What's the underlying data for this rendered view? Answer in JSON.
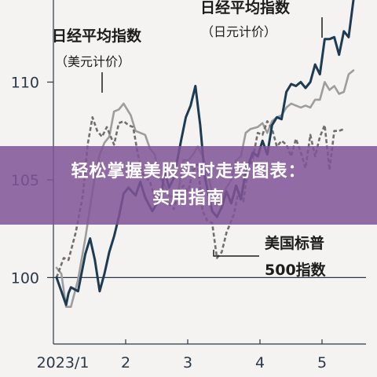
{
  "chart_data": {
    "type": "line",
    "title": "",
    "xlabel": "",
    "ylabel": "",
    "x_ticks": [
      "2023/1",
      "2",
      "3",
      "4",
      "5"
    ],
    "y_ticks": [
      100,
      105,
      110
    ],
    "ylim": [
      96.6,
      114.2
    ],
    "reference_line": 100,
    "grid": false,
    "series": [
      {
        "name": "日经平均指数（日元计价）",
        "style": "solid",
        "color": "#1d3b53",
        "x": [
          0,
          2,
          4,
          5,
          6,
          9,
          12,
          14,
          16,
          18,
          20,
          22,
          24,
          26,
          28,
          30,
          33,
          35,
          37,
          40,
          42,
          44,
          45,
          47,
          49,
          52,
          54,
          56,
          58,
          60,
          62,
          65,
          67,
          69,
          71,
          73,
          75,
          77,
          79,
          82,
          84,
          86,
          88,
          90,
          92,
          94,
          96,
          98,
          100,
          102,
          104,
          106,
          108,
          110,
          112,
          114,
          116,
          118,
          120,
          122,
          124
        ],
        "values": [
          100.0,
          99.3,
          98.6,
          99.2,
          99.5,
          99.3,
          101.2,
          102.0,
          100.9,
          99.3,
          100.2,
          101.3,
          102.1,
          103.1,
          104.3,
          104.6,
          104.2,
          104.9,
          104.1,
          103.4,
          103.8,
          104.3,
          105.5,
          104.6,
          105.1,
          107.0,
          108.2,
          108.8,
          109.8,
          107.8,
          105.1,
          103.4,
          103.1,
          103.6,
          104.4,
          103.8,
          104.7,
          104.0,
          105.4,
          106.4,
          106.2,
          107.0,
          106.3,
          107.8,
          108.2,
          108.1,
          109.5,
          109.9,
          109.8,
          110.0,
          109.7,
          110.0,
          110.9,
          110.4,
          112.2,
          112.2,
          112.3,
          111.4,
          112.6,
          112.3,
          114.2
        ]
      },
      {
        "name": "日经平均指数（美元计价）",
        "style": "solid",
        "color": "#9d9d9d",
        "x": [
          0,
          2,
          4,
          6,
          9,
          12,
          14,
          16,
          18,
          20,
          22,
          24,
          26,
          28,
          31,
          33,
          35,
          37,
          39,
          41,
          43,
          45,
          47,
          49,
          51,
          53,
          55,
          57,
          59,
          61,
          63,
          65,
          67,
          69,
          71,
          73,
          75,
          77,
          79,
          81,
          84,
          86,
          88,
          90,
          92,
          94,
          96,
          98,
          100,
          102,
          104,
          106,
          108,
          110,
          112,
          114,
          116,
          118,
          120,
          122,
          124
        ],
        "values": [
          100.5,
          100.2,
          98.5,
          98.5,
          99.9,
          102.0,
          103.6,
          105.2,
          106.3,
          106.9,
          107.2,
          108.5,
          108.6,
          108.9,
          108.3,
          107.5,
          107.4,
          107.3,
          106.6,
          106.3,
          105.1,
          104.8,
          104.2,
          104.1,
          104.5,
          106.0,
          106.0,
          106.3,
          106.7,
          106.2,
          105.4,
          104.4,
          103.7,
          104.0,
          104.6,
          105.0,
          106.0,
          106.2,
          107.4,
          107.6,
          107.7,
          107.9,
          107.4,
          108.0,
          108.2,
          108.3,
          108.7,
          108.9,
          108.8,
          108.7,
          108.8,
          108.7,
          109.1,
          109.1,
          110.0,
          109.6,
          109.8,
          109.4,
          109.5,
          110.4,
          110.6
        ]
      },
      {
        "name": "美国标普500指数",
        "style": "dashed",
        "color": "#6f6f6f",
        "x": [
          0,
          3,
          5,
          8,
          11,
          13,
          15,
          17,
          19,
          21,
          24,
          26,
          28,
          30,
          32,
          34,
          36,
          39,
          41,
          43,
          45,
          47,
          49,
          51,
          53,
          55,
          57,
          59,
          61,
          63,
          65,
          67,
          69,
          71,
          74,
          76,
          78,
          80,
          82,
          84,
          86,
          88,
          90,
          92,
          94,
          96,
          98,
          100,
          102,
          104,
          106,
          108,
          110,
          112,
          114,
          116,
          118,
          120
        ],
        "values": [
          100.0,
          101.0,
          100.9,
          102.3,
          104.2,
          106.8,
          108.2,
          107.5,
          107.2,
          107.7,
          106.8,
          107.9,
          108.0,
          107.8,
          107.7,
          106.3,
          105.3,
          104.9,
          104.1,
          104.0,
          104.0,
          103.8,
          103.5,
          104.4,
          104.7,
          104.4,
          105.5,
          105.8,
          103.4,
          102.9,
          102.8,
          101.0,
          101.3,
          102.3,
          103.2,
          104.4,
          103.9,
          105.5,
          106.1,
          107.4,
          107.3,
          108.0,
          107.6,
          106.7,
          107.0,
          106.8,
          106.2,
          107.1,
          106.4,
          105.6,
          107.3,
          106.2,
          107.2,
          107.8,
          105.5,
          107.5,
          107.5,
          107.6
        ]
      }
    ]
  },
  "annotations": {
    "nikkei_usd_title": "日经平均指数",
    "nikkei_usd_sub": "（美元计价）",
    "nikkei_jpy_title": "日经平均指数",
    "nikkei_jpy_sub": "（日元计价）",
    "sp500_line1": "美国标普",
    "sp500_line2": "500指数"
  },
  "banner": {
    "line1": "轻松掌握美股实时走势图表：",
    "line2": "实用指南",
    "color": "#805496"
  }
}
